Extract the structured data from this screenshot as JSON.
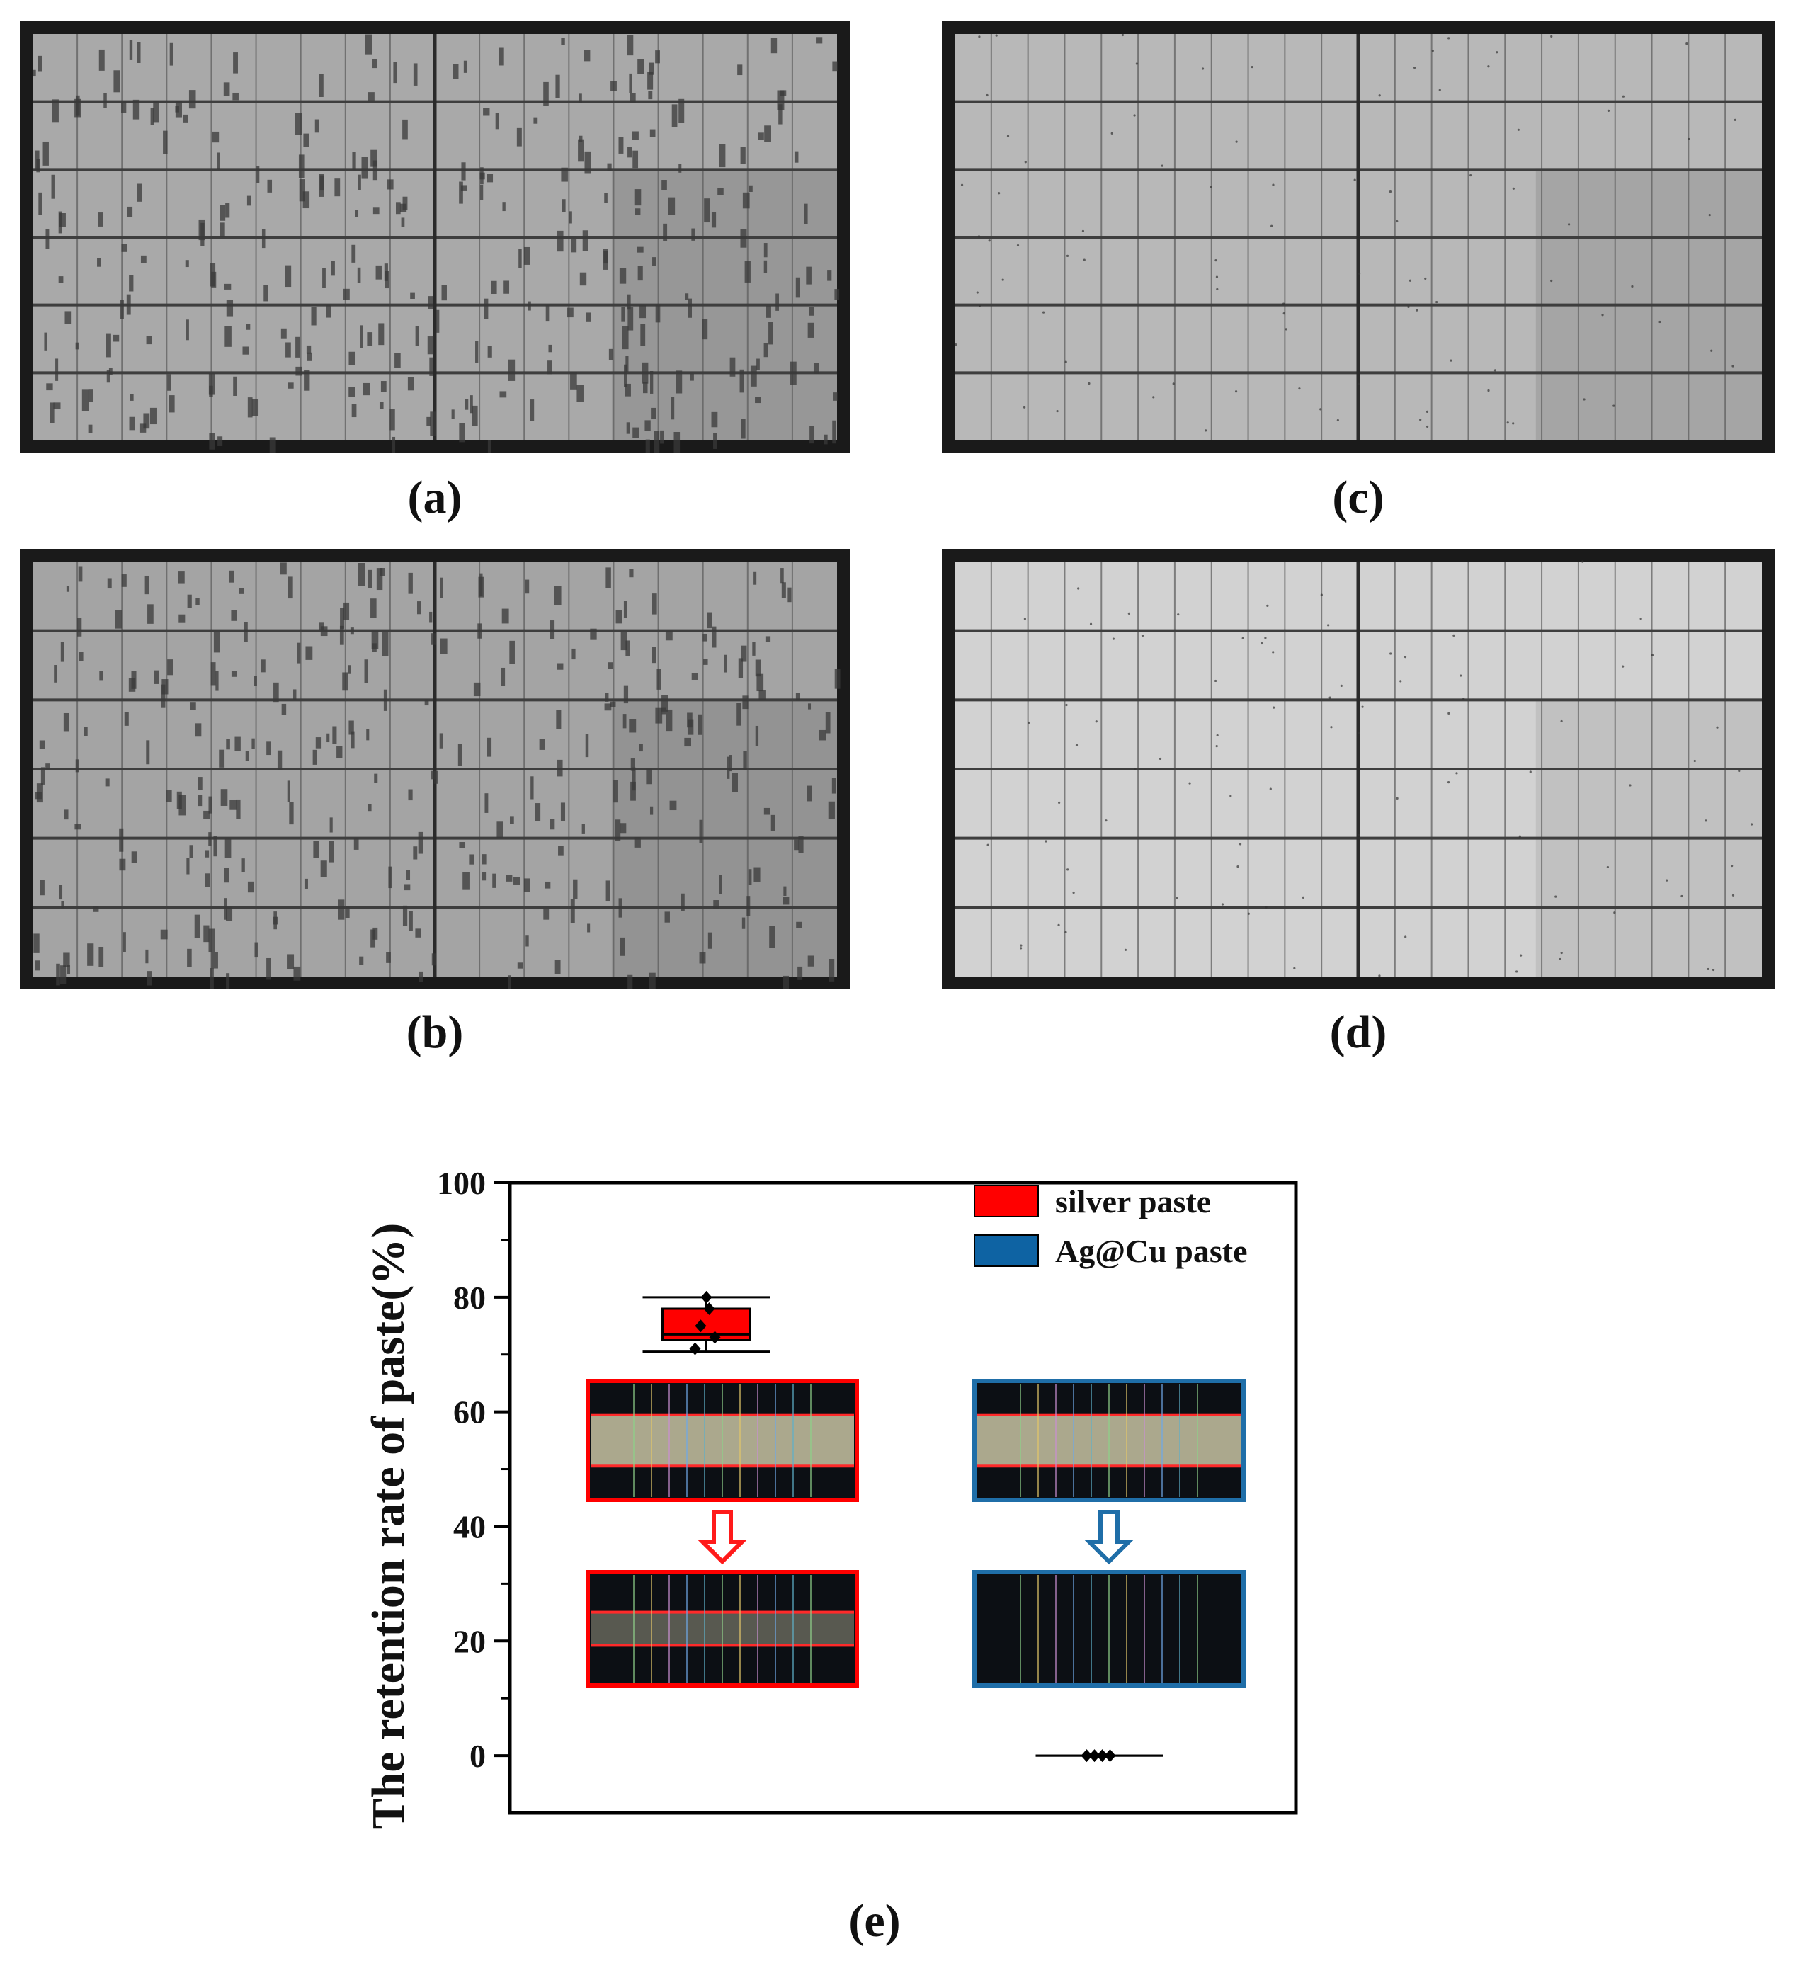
{
  "panels": [
    {
      "id": "a",
      "label": "(a)",
      "tone": "dark-defect",
      "brightness": "#a9a9a9",
      "rows": 6,
      "cols": 18
    },
    {
      "id": "c",
      "label": "(c)",
      "tone": "uniform",
      "brightness": "#b8b8b8",
      "rows": 6,
      "cols": 22
    },
    {
      "id": "b",
      "label": "(b)",
      "tone": "dark-defect",
      "brightness": "#a4a4a4",
      "rows": 6,
      "cols": 18
    },
    {
      "id": "d",
      "label": "(d)",
      "tone": "bright",
      "brightness": "#d2d2d2",
      "rows": 6,
      "cols": 22
    }
  ],
  "chart_data": {
    "type": "box",
    "panel_label": "(e)",
    "title": "",
    "xlabel": "",
    "ylabel": "The retention rate of paste(%)",
    "ylim": [
      -10,
      100
    ],
    "yticks": [
      0,
      20,
      40,
      60,
      80,
      100
    ],
    "grid": false,
    "legend_position": "top-right",
    "series": [
      {
        "name": "silver paste",
        "color": "#ff0000",
        "x_position": 1,
        "box": {
          "q1": 72.5,
          "median": 73.5,
          "q3": 78,
          "whisker_low": 70.5,
          "whisker_high": 80
        },
        "points": [
          80,
          78,
          75,
          73,
          71
        ]
      },
      {
        "name": "Ag@Cu paste",
        "color": "#0e63a3",
        "x_position": 2,
        "box": {
          "q1": 0,
          "median": 0,
          "q3": 0,
          "whisker_low": 0,
          "whisker_high": 0
        },
        "points": [
          0,
          0,
          0,
          0
        ]
      }
    ],
    "insets": [
      {
        "name": "silver-before-inset",
        "border": "#ff0000"
      },
      {
        "name": "silver-after-inset",
        "border": "#ff0000"
      },
      {
        "name": "agcu-before-inset",
        "border": "#1f6ea8"
      },
      {
        "name": "agcu-after-inset",
        "border": "#1f6ea8"
      }
    ]
  }
}
